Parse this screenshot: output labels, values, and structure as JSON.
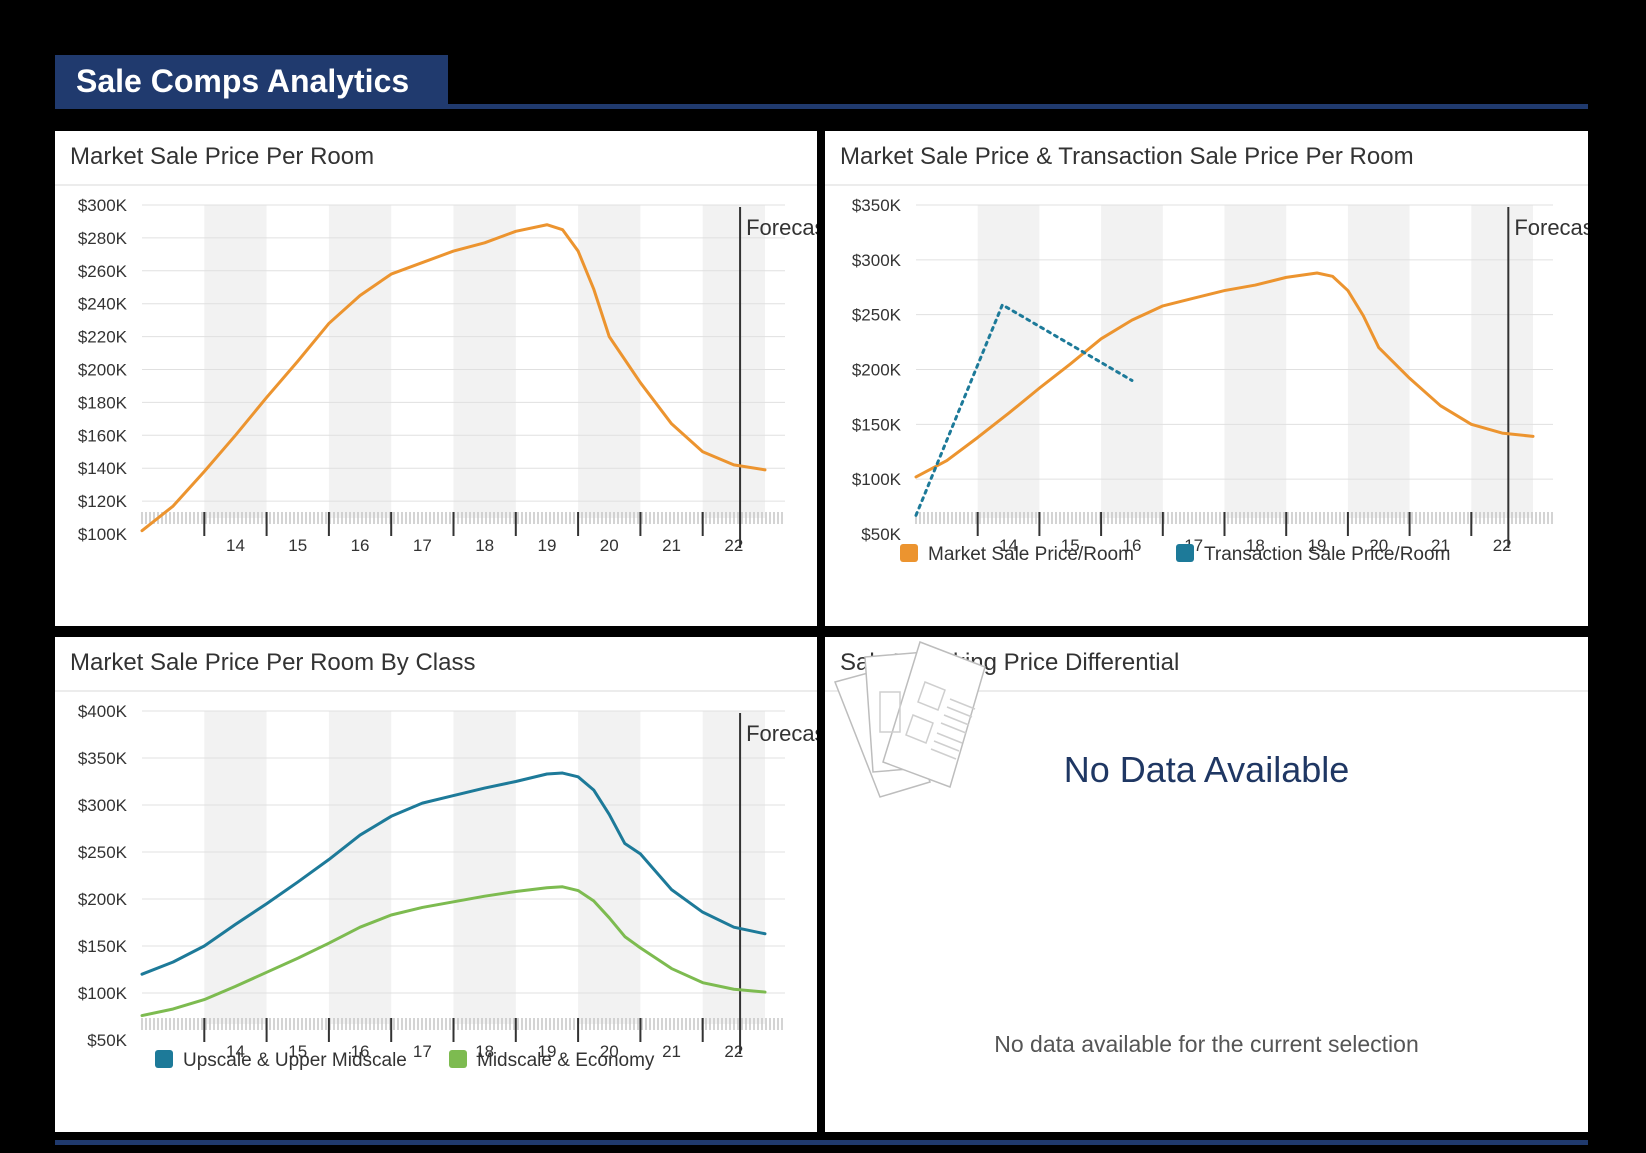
{
  "header": {
    "title": "Sale Comps Analytics"
  },
  "panels": {
    "p1": {
      "title": "Market Sale Price Per Room"
    },
    "p2": {
      "title": "Market Sale Price & Transaction Sale Price Per Room"
    },
    "p3": {
      "title": "Market Sale Price Per Room By Class"
    },
    "p4": {
      "title": "Sale To Asking Price Differential",
      "no_data_title": "No Data Available",
      "no_data_text": "No data available for the current selection"
    }
  },
  "colors": {
    "brand": "#203a6e",
    "orange": "#ec942f",
    "teal": "#1d7a99",
    "green": "#7dbb50"
  },
  "icons": [
    "documents-icon"
  ],
  "chart_data": [
    {
      "id": "p1",
      "type": "line",
      "title": "Market Sale Price Per Room",
      "ylim": [
        100,
        300
      ],
      "yticks": [
        100,
        120,
        140,
        160,
        180,
        200,
        220,
        240,
        260,
        280,
        300
      ],
      "ytick_labels": [
        "$100K",
        "$120K",
        "$140K",
        "$160K",
        "$180K",
        "$200K",
        "$220K",
        "$240K",
        "$260K",
        "$280K",
        "$300K"
      ],
      "xlim": [
        13.0,
        23.0
      ],
      "xticks": [
        14,
        15,
        16,
        17,
        18,
        19,
        20,
        21,
        22
      ],
      "xtick_labels": [
        "14",
        "15",
        "16",
        "17",
        "18",
        "19",
        "20",
        "21",
        "22"
      ],
      "grid": true,
      "forecast_x": 22.6,
      "forecast_label": "Forecast",
      "legend": [],
      "series": [
        {
          "color": "#ec942f",
          "style": "solid",
          "x": [
            13.0,
            13.5,
            14.0,
            14.5,
            15.0,
            15.5,
            16.0,
            16.5,
            17.0,
            17.5,
            18.0,
            18.5,
            19.0,
            19.5,
            19.75,
            20.0,
            20.25,
            20.5,
            20.75,
            21.0,
            21.5,
            22.0,
            22.5,
            23.0
          ],
          "y": [
            102,
            117,
            138,
            160,
            183,
            205,
            228,
            245,
            258,
            265,
            272,
            277,
            284,
            288,
            285,
            272,
            249,
            220,
            206,
            192,
            167,
            150,
            142,
            139
          ]
        }
      ]
    },
    {
      "id": "p2",
      "type": "line",
      "title": "Market Sale Price & Transaction Sale Price Per Room",
      "ylim": [
        50,
        350
      ],
      "yticks": [
        50,
        100,
        150,
        200,
        250,
        300,
        350
      ],
      "ytick_labels": [
        "$50K",
        "$100K",
        "$150K",
        "$200K",
        "$250K",
        "$300K",
        "$350K"
      ],
      "xlim": [
        13.0,
        23.0
      ],
      "xticks": [
        14,
        15,
        16,
        17,
        18,
        19,
        20,
        21,
        22
      ],
      "xtick_labels": [
        "14",
        "15",
        "16",
        "17",
        "18",
        "19",
        "20",
        "21",
        "22"
      ],
      "grid": true,
      "forecast_x": 22.6,
      "forecast_label": "Forecast",
      "legend": [
        {
          "label": "Market Sale Price/Room",
          "color": "#ec942f"
        },
        {
          "label": "Transaction Sale Price/Room",
          "color": "#1d7a99"
        }
      ],
      "series": [
        {
          "name": "Market Sale Price/Room",
          "color": "#ec942f",
          "style": "solid",
          "x": [
            13.0,
            13.5,
            14.0,
            14.5,
            15.0,
            15.5,
            16.0,
            16.5,
            17.0,
            17.5,
            18.0,
            18.5,
            19.0,
            19.5,
            19.75,
            20.0,
            20.25,
            20.5,
            20.75,
            21.0,
            21.5,
            22.0,
            22.5,
            23.0
          ],
          "y": [
            102,
            117,
            138,
            160,
            183,
            205,
            228,
            245,
            258,
            265,
            272,
            277,
            284,
            288,
            285,
            272,
            249,
            220,
            206,
            192,
            167,
            150,
            142,
            139
          ]
        },
        {
          "name": "Transaction Sale Price/Room",
          "color": "#1d7a99",
          "style": "dotted",
          "x": [
            13.0,
            14.4,
            16.5
          ],
          "y": [
            67,
            259,
            190
          ]
        }
      ]
    },
    {
      "id": "p3",
      "type": "line",
      "title": "Market Sale Price Per Room By Class",
      "ylim": [
        50,
        400
      ],
      "yticks": [
        50,
        100,
        150,
        200,
        250,
        300,
        350,
        400
      ],
      "ytick_labels": [
        "$50K",
        "$100K",
        "$150K",
        "$200K",
        "$250K",
        "$300K",
        "$350K",
        "$400K"
      ],
      "xlim": [
        13.0,
        23.0
      ],
      "xticks": [
        14,
        15,
        16,
        17,
        18,
        19,
        20,
        21,
        22
      ],
      "xtick_labels": [
        "14",
        "15",
        "16",
        "17",
        "18",
        "19",
        "20",
        "21",
        "22"
      ],
      "grid": true,
      "forecast_x": 22.6,
      "forecast_label": "Forecast",
      "legend": [
        {
          "label": "Upscale & Upper Midscale",
          "color": "#1d7a99"
        },
        {
          "label": "Midscale & Economy",
          "color": "#7dbb50"
        }
      ],
      "series": [
        {
          "name": "Upscale & Upper Midscale",
          "color": "#1d7a99",
          "style": "solid",
          "x": [
            13.0,
            13.5,
            14.0,
            14.5,
            15.0,
            15.5,
            16.0,
            16.5,
            17.0,
            17.5,
            18.0,
            18.5,
            19.0,
            19.5,
            19.75,
            20.0,
            20.25,
            20.5,
            20.75,
            21.0,
            21.5,
            22.0,
            22.5,
            23.0
          ],
          "y": [
            120,
            133,
            150,
            173,
            195,
            218,
            242,
            268,
            288,
            302,
            310,
            318,
            325,
            333,
            334,
            330,
            316,
            290,
            259,
            248,
            210,
            186,
            170,
            163
          ]
        },
        {
          "name": "Midscale & Economy",
          "color": "#7dbb50",
          "style": "solid",
          "x": [
            13.0,
            13.5,
            14.0,
            14.5,
            15.0,
            15.5,
            16.0,
            16.5,
            17.0,
            17.5,
            18.0,
            18.5,
            19.0,
            19.5,
            19.75,
            20.0,
            20.25,
            20.5,
            20.75,
            21.0,
            21.5,
            22.0,
            22.5,
            23.0
          ],
          "y": [
            76,
            83,
            93,
            107,
            122,
            137,
            153,
            170,
            183,
            191,
            197,
            203,
            208,
            212,
            213,
            209,
            198,
            180,
            160,
            148,
            126,
            111,
            104,
            101
          ]
        }
      ]
    }
  ]
}
